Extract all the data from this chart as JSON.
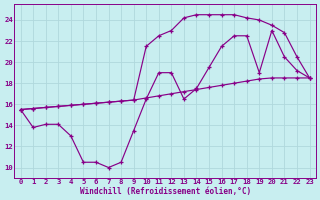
{
  "xlabel": "Windchill (Refroidissement éolien,°C)",
  "bg_color": "#c8eef0",
  "grid_color": "#b0d8dc",
  "line_color": "#880088",
  "xlim": [
    -0.5,
    23.5
  ],
  "ylim": [
    9,
    25.5
  ],
  "xticks": [
    0,
    1,
    2,
    3,
    4,
    5,
    6,
    7,
    8,
    9,
    10,
    11,
    12,
    13,
    14,
    15,
    16,
    17,
    18,
    19,
    20,
    21,
    22,
    23
  ],
  "yticks": [
    10,
    12,
    14,
    16,
    18,
    20,
    22,
    24
  ],
  "line1_x": [
    0,
    1,
    2,
    3,
    4,
    5,
    6,
    7,
    8,
    9,
    10,
    11,
    12,
    13,
    14,
    15,
    16,
    17,
    18,
    19,
    20,
    21,
    22,
    23
  ],
  "line1_y": [
    15.5,
    13.8,
    14.1,
    14.1,
    13.0,
    10.5,
    10.5,
    10.0,
    10.5,
    13.5,
    16.5,
    19.0,
    19.0,
    16.5,
    17.5,
    19.5,
    21.5,
    22.5,
    22.5,
    19.0,
    23.0,
    20.5,
    19.2,
    18.5
  ],
  "line2_x": [
    0,
    1,
    2,
    3,
    4,
    5,
    6,
    7,
    8,
    9,
    10,
    11,
    12,
    13,
    14,
    15,
    16,
    17,
    18,
    19,
    20,
    21,
    22,
    23
  ],
  "line2_y": [
    15.5,
    15.6,
    15.7,
    15.8,
    15.9,
    16.0,
    16.1,
    16.2,
    16.3,
    16.4,
    16.6,
    16.8,
    17.0,
    17.2,
    17.4,
    17.6,
    17.8,
    18.0,
    18.2,
    18.4,
    18.5,
    18.5,
    18.5,
    18.5
  ],
  "line3_x": [
    0,
    1,
    2,
    3,
    4,
    5,
    6,
    7,
    8,
    9,
    10,
    11,
    12,
    13,
    14,
    15,
    16,
    17,
    18,
    19,
    20,
    21,
    22,
    23
  ],
  "line3_y": [
    15.5,
    15.6,
    15.7,
    15.8,
    15.9,
    16.0,
    16.1,
    16.2,
    16.3,
    16.4,
    21.5,
    22.5,
    23.0,
    24.2,
    24.5,
    24.5,
    24.5,
    24.5,
    24.2,
    24.0,
    23.5,
    22.8,
    20.5,
    18.5
  ]
}
